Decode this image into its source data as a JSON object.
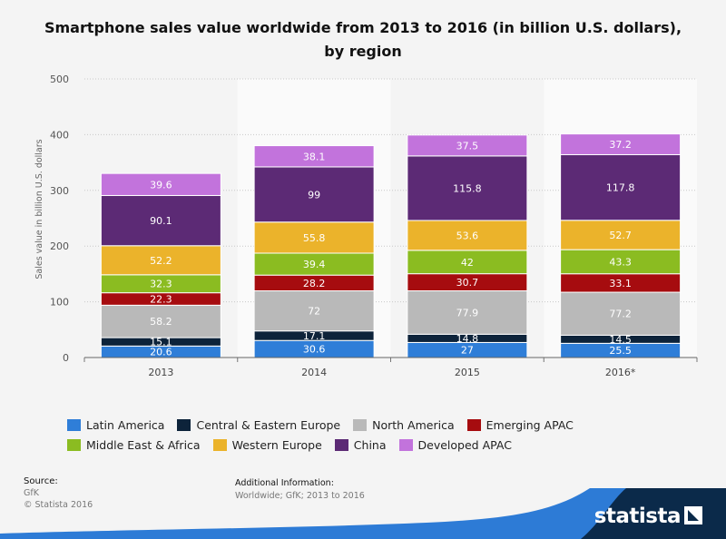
{
  "chart_data": {
    "type": "bar",
    "stacked": true,
    "title_line1": "Smartphone sales value worldwide from 2013 to 2016 (in billion U.S. dollars),",
    "title_line2": "by region",
    "ylabel": "Sales value in billion U.S. dollars",
    "xlabel": "",
    "ylim": [
      0,
      500
    ],
    "yticks": [
      "0",
      "100",
      "200",
      "300",
      "400",
      "500"
    ],
    "grid": true,
    "legend_position": "bottom",
    "categories": [
      "2013",
      "2014",
      "2015",
      "2016*"
    ],
    "series": [
      {
        "name": "Latin America",
        "color": "#2f7ed8",
        "values": [
          20.6,
          30.6,
          27,
          25.5
        ],
        "labels": [
          "20.6",
          "30.6",
          "27",
          "25.5"
        ]
      },
      {
        "name": "Central & Eastern Europe",
        "color": "#0d233a",
        "values": [
          15.1,
          17.1,
          14.8,
          14.5
        ],
        "labels": [
          "15.1",
          "17.1",
          "14.8",
          "14.5"
        ]
      },
      {
        "name": "North America",
        "color": "#b9b9b9",
        "values": [
          58.2,
          72,
          77.9,
          77.2
        ],
        "labels": [
          "58.2",
          "72",
          "77.9",
          "77.2"
        ]
      },
      {
        "name": "Emerging APAC",
        "color": "#a60c0f",
        "values": [
          22.3,
          28.2,
          30.7,
          33.1
        ],
        "labels": [
          "22.3",
          "28.2",
          "30.7",
          "33.1"
        ]
      },
      {
        "name": "Middle East & Africa",
        "color": "#8bbc21",
        "values": [
          32.3,
          39.4,
          42,
          43.3
        ],
        "labels": [
          "32.3",
          "39.4",
          "42",
          "43.3"
        ]
      },
      {
        "name": "Western Europe",
        "color": "#ebb32b",
        "values": [
          52.2,
          55.8,
          53.6,
          52.7
        ],
        "labels": [
          "52.2",
          "55.8",
          "53.6",
          "52.7"
        ]
      },
      {
        "name": "China",
        "color": "#5c2a75",
        "values": [
          90.1,
          99,
          115.8,
          117.8
        ],
        "labels": [
          "90.1",
          "99",
          "115.8",
          "117.8"
        ]
      },
      {
        "name": "Developed APAC",
        "color": "#c273dc",
        "values": [
          39.6,
          38.1,
          37.5,
          37.2
        ],
        "labels": [
          "39.6",
          "38.1",
          "37.5",
          "37.2"
        ]
      }
    ]
  },
  "footer": {
    "source_label": "Source:",
    "source_value": "GfK",
    "copyright": "© Statista 2016",
    "info_label": "Additional Information:",
    "info_value": "Worldwide; GfK; 2013 to 2016",
    "brand": "statista"
  },
  "colors": {
    "brand_dark": "#0b2a4a",
    "brand_accent": "#2d7bd6"
  }
}
